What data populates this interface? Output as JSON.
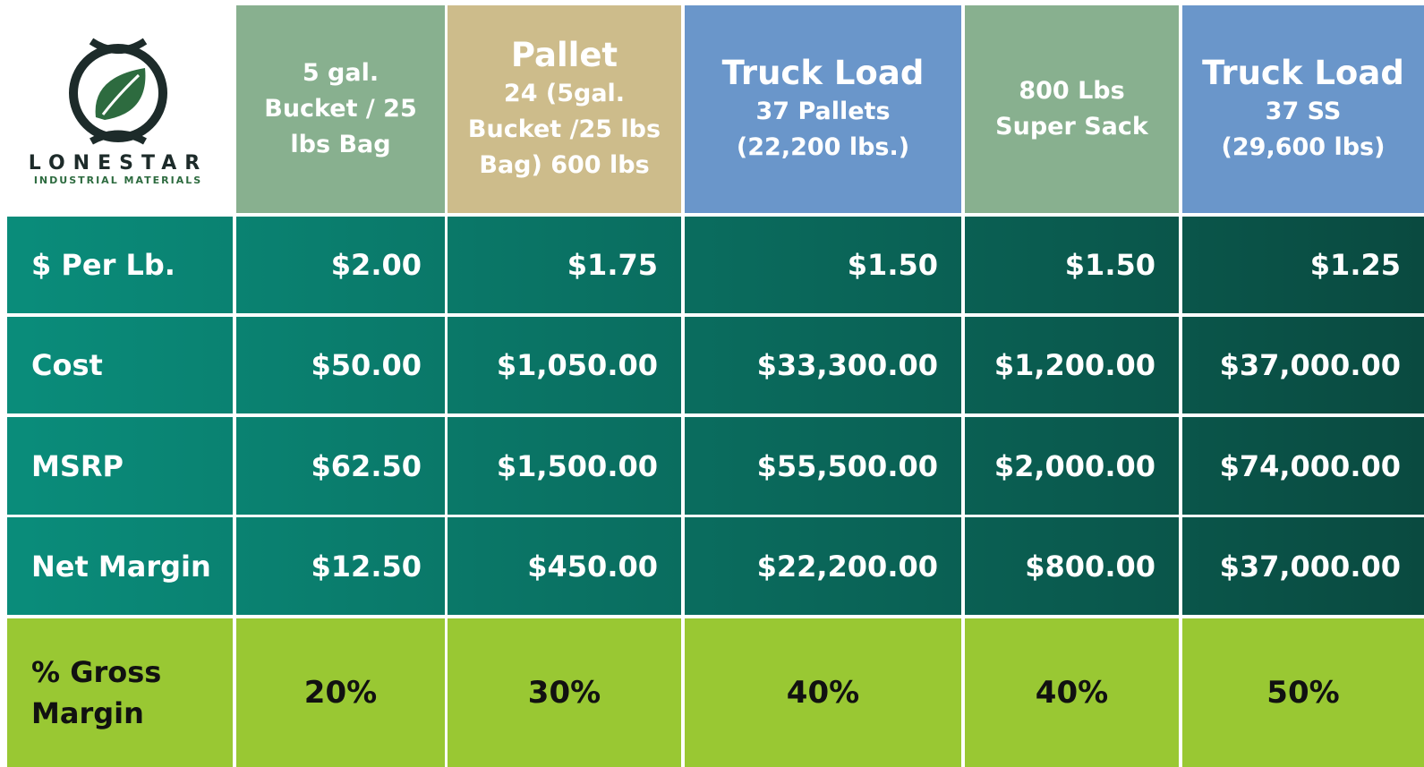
{
  "logo": {
    "name": "LONESTAR",
    "tagline": "INDUSTRIAL MATERIALS"
  },
  "table": {
    "columns": [
      {
        "lines": [
          "5 gal.",
          "Bucket / 25",
          "lbs Bag"
        ],
        "color": "#88b08f"
      },
      {
        "title": "Pallet",
        "lines": [
          "24 (5gal.",
          "Bucket /25 lbs",
          "Bag) 600 lbs"
        ],
        "color": "#cdbc8b"
      },
      {
        "title": "Truck Load",
        "lines": [
          "37 Pallets",
          "(22,200 lbs.)"
        ],
        "color": "#6a96ca"
      },
      {
        "lines": [
          "800 Lbs",
          "Super Sack"
        ],
        "color": "#88b08f"
      },
      {
        "title": "Truck Load",
        "lines": [
          "37 SS",
          "(29,600 lbs)"
        ],
        "color": "#6a96ca"
      }
    ],
    "rows": [
      {
        "label": "$ Per Lb.",
        "cells": [
          "$2.00",
          "$1.75",
          "$1.50",
          "$1.50",
          "$1.25"
        ]
      },
      {
        "label": "Cost",
        "cells": [
          "$50.00",
          "$1,050.00",
          "$33,300.00",
          "$1,200.00",
          "$37,000.00"
        ]
      },
      {
        "label": "MSRP",
        "cells": [
          "$62.50",
          "$1,500.00",
          "$55,500.00",
          "$2,000.00",
          "$74,000.00"
        ]
      },
      {
        "label": "Net Margin",
        "cells": [
          "$12.50",
          "$450.00",
          "$22,200.00",
          "$800.00",
          "$37,000.00"
        ]
      },
      {
        "label": "% Gross Margin",
        "cells": [
          "20%",
          "30%",
          "40%",
          "40%",
          "50%"
        ],
        "color": "#99c833"
      }
    ]
  }
}
